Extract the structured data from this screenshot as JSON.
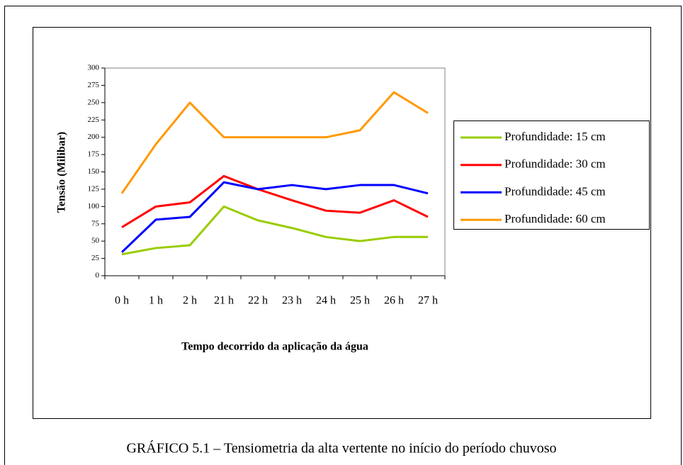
{
  "chart_data": {
    "type": "line",
    "caption": "GRÁFICO 5.1 – Tensiometria da alta vertente no início do período chuvoso",
    "x_label": "Tempo decorrido da aplicação da água",
    "y_label": "Tensão (Milibar)",
    "categories": [
      "0 h",
      "1 h",
      "2 h",
      "21 h",
      "22 h",
      "23 h",
      "24 h",
      "25 h",
      "26 h",
      "27 h"
    ],
    "series": [
      {
        "name": "Profundidade: 15 cm",
        "color": "#99cc00",
        "values": [
          31,
          40,
          44,
          100,
          80,
          69,
          56,
          50,
          56,
          56
        ]
      },
      {
        "name": "Profundidade: 30 cm",
        "color": "#ff0000",
        "values": [
          70,
          100,
          106,
          144,
          125,
          109,
          94,
          91,
          109,
          85
        ]
      },
      {
        "name": "Profundidade: 45 cm",
        "color": "#0000ff",
        "values": [
          34,
          81,
          85,
          135,
          125,
          131,
          125,
          131,
          131,
          119
        ]
      },
      {
        "name": "Profundidade: 60 cm",
        "color": "#ff9900",
        "values": [
          119,
          190,
          250,
          200,
          200,
          200,
          200,
          210,
          265,
          235
        ]
      }
    ],
    "ylim": [
      0,
      300
    ],
    "yticks": [
      0,
      25,
      50,
      75,
      100,
      125,
      150,
      175,
      200,
      225,
      250,
      275,
      300
    ],
    "grid": false,
    "legend": "right"
  }
}
